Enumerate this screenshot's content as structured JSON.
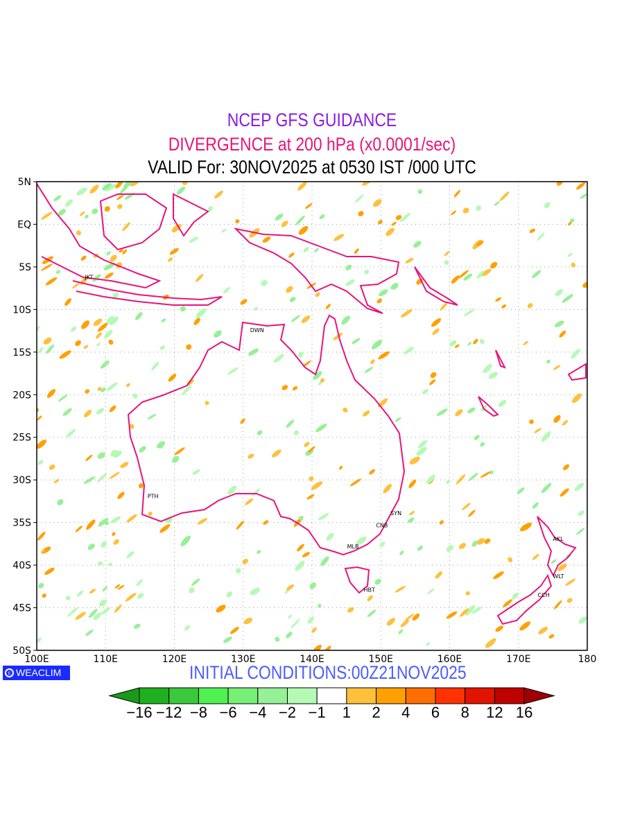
{
  "title": {
    "line1": "NCEP GFS GUIDANCE",
    "line2": "DIVERGENCE at 200 hPa (x0.0001/sec)",
    "line3": "VALID For: 30NOV2025 at 0530 IST /000 UTC"
  },
  "axes": {
    "lat_labels": [
      "5N",
      "EQ",
      "5S",
      "10S",
      "15S",
      "20S",
      "25S",
      "30S",
      "35S",
      "40S",
      "45S",
      "50S"
    ],
    "lon_labels": [
      "100E",
      "110E",
      "120E",
      "130E",
      "140E",
      "150E",
      "160E",
      "170E",
      "180"
    ]
  },
  "cities": [
    {
      "name": "JKT",
      "lon": 106.8,
      "lat": -6.2
    },
    {
      "name": "DWN",
      "lon": 130.8,
      "lat": -12.4
    },
    {
      "name": "PTH",
      "lon": 115.9,
      "lat": -31.9
    },
    {
      "name": "SYN",
      "lon": 151.2,
      "lat": -33.9
    },
    {
      "name": "CNB",
      "lon": 149.1,
      "lat": -35.3
    },
    {
      "name": "MLB",
      "lon": 144.9,
      "lat": -37.8
    },
    {
      "name": "HBT",
      "lon": 147.3,
      "lat": -42.9
    },
    {
      "name": "AKL",
      "lon": 174.8,
      "lat": -36.9
    },
    {
      "name": "WLT",
      "lon": 174.8,
      "lat": -41.3
    },
    {
      "name": "CCH",
      "lon": 172.6,
      "lat": -43.5
    }
  ],
  "logo": "WEACLIM",
  "initial_conditions": "INITIAL CONDITIONS:00Z21NOV2025",
  "colorbar": {
    "ticks": [
      "−16",
      "−12",
      "−8",
      "−6",
      "−4",
      "−2",
      "−1",
      "1",
      "2",
      "4",
      "6",
      "8",
      "12",
      "16"
    ],
    "colors": [
      "#1a9a1a",
      "#1eb01e",
      "#3cc83c",
      "#50f050",
      "#78f078",
      "#96f096",
      "#b4fab4",
      "#ffffff",
      "#ffc03c",
      "#ffa000",
      "#ff6e00",
      "#ff3200",
      "#e11400",
      "#be0000",
      "#a00000"
    ]
  }
}
